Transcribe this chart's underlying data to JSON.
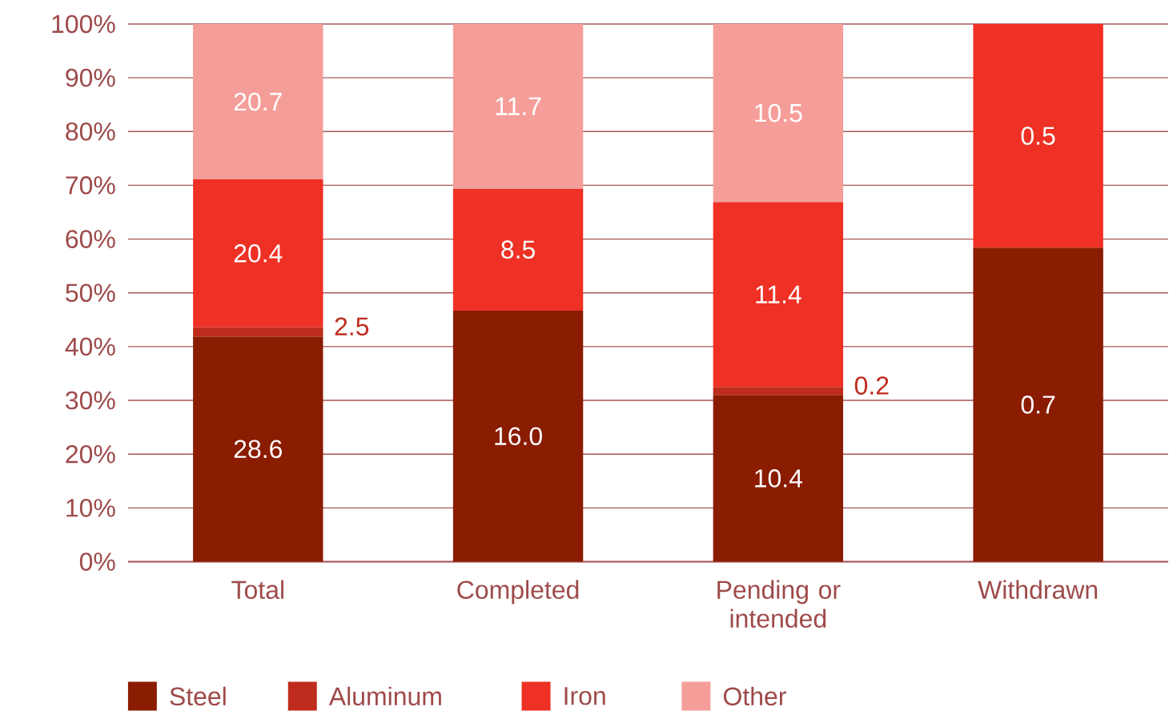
{
  "chart_data": {
    "type": "bar",
    "stacked": true,
    "categories": [
      "Total",
      "Completed",
      "Pending or intended",
      "Withdrawn"
    ],
    "series": [
      {
        "name": "Steel",
        "color": "#8a1c00",
        "values": [
          41.9,
          46.7,
          31.0,
          58.4
        ]
      },
      {
        "name": "Aluminum",
        "color": "#bf2b1c",
        "values": [
          1.7,
          null,
          1.5,
          null
        ]
      },
      {
        "name": "Iron",
        "color": "#ee3124",
        "values": [
          27.5,
          22.7,
          34.4,
          41.6
        ]
      },
      {
        "name": "Other",
        "color": "#f59e99",
        "values": [
          28.9,
          30.6,
          33.1,
          null
        ]
      }
    ],
    "annotations": [
      "28.6",
      "2.5",
      "20.4",
      "20.7",
      "16.0",
      "8.5",
      "11.7",
      "10.4",
      "0.2",
      "11.4",
      "10.5",
      "0.7",
      "0.5"
    ],
    "ylim": [
      0,
      100
    ],
    "yticks": [
      {
        "value": 0,
        "label": "0%"
      },
      {
        "value": 10,
        "label": "10%"
      },
      {
        "value": 20,
        "label": "20%"
      },
      {
        "value": 30,
        "label": "30%"
      },
      {
        "value": 40,
        "label": "40%"
      },
      {
        "value": 50,
        "label": "50%"
      },
      {
        "value": 60,
        "label": "60%"
      },
      {
        "value": 70,
        "label": "70%"
      },
      {
        "value": 80,
        "label": "80%"
      },
      {
        "value": 90,
        "label": "90%"
      },
      {
        "value": 100,
        "label": "100%"
      }
    ],
    "grid": "y",
    "legend": "bottom"
  }
}
